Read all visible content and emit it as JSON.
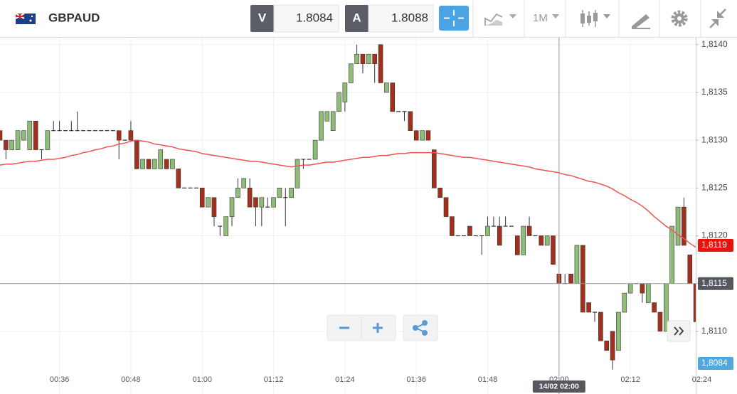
{
  "toolbar": {
    "symbol": "GBPAUD",
    "sell": {
      "label": "V",
      "price": "1.8084"
    },
    "buy": {
      "label": "A",
      "price": "1.8088"
    },
    "timeframe": "1M"
  },
  "chart_data": {
    "type": "candlestick",
    "categories": [
      null,
      null,
      null,
      null,
      null,
      null,
      null,
      null,
      null,
      null,
      "00:36",
      null,
      null,
      null,
      null,
      null,
      null,
      null,
      null,
      null,
      null,
      null,
      "00:48",
      null,
      null,
      null,
      null,
      null,
      null,
      null,
      null,
      null,
      null,
      null,
      "01:00",
      null,
      null,
      null,
      null,
      null,
      null,
      null,
      null,
      null,
      null,
      null,
      "01:12",
      null,
      null,
      null,
      null,
      null,
      null,
      null,
      null,
      null,
      null,
      null,
      "01:24",
      null,
      null,
      null,
      null,
      null,
      null,
      null,
      null,
      null,
      null,
      null,
      "01:36",
      null,
      null,
      null,
      null,
      null,
      null,
      null,
      null,
      null,
      null,
      null,
      "01:48",
      null,
      null,
      null,
      null,
      null,
      null,
      null,
      null,
      null,
      null,
      null,
      "02:00",
      null,
      null,
      null,
      null,
      null,
      null,
      null,
      null,
      null,
      null,
      null,
      "02:12",
      null,
      null,
      null,
      null,
      null,
      null,
      null,
      null,
      null,
      null,
      null,
      "02:24"
    ],
    "candles": [
      [
        1.8131,
        1.8131,
        1.813,
        1.813
      ],
      [
        1.813,
        1.813,
        1.8128,
        1.8129
      ],
      [
        1.8129,
        1.813,
        1.8129,
        1.813
      ],
      [
        1.8129,
        1.8131,
        1.8129,
        1.8131
      ],
      [
        1.813,
        1.8131,
        1.813,
        1.8131
      ],
      [
        1.8129,
        1.8132,
        1.8129,
        1.8132
      ],
      [
        1.8132,
        1.8132,
        1.8129,
        1.8129
      ],
      [
        1.8129,
        1.8129,
        1.8128,
        1.8129
      ],
      [
        1.8129,
        1.8131,
        1.8129,
        1.8131
      ],
      [
        1.8131,
        1.8132,
        1.8131,
        1.8131
      ],
      [
        1.8131,
        1.8132,
        1.8131,
        1.8131
      ],
      [
        1.8131,
        1.8131,
        1.8131,
        1.8131
      ],
      [
        1.8131,
        1.8132,
        1.8131,
        1.8131
      ],
      [
        1.8131,
        1.8133,
        1.8131,
        1.8131
      ],
      [
        1.8131,
        1.8131,
        1.8131,
        1.8131
      ],
      [
        1.8131,
        1.8131,
        1.8131,
        1.8131
      ],
      [
        1.8131,
        1.8131,
        1.8131,
        1.8131
      ],
      [
        1.8131,
        1.8131,
        1.8131,
        1.8131
      ],
      [
        1.8131,
        1.8131,
        1.8131,
        1.8131
      ],
      [
        1.8131,
        1.8131,
        1.8131,
        1.8131
      ],
      [
        1.8131,
        1.8131,
        1.8128,
        1.813
      ],
      [
        1.813,
        1.813,
        1.813,
        1.813
      ],
      [
        1.8131,
        1.8132,
        1.813,
        1.813
      ],
      [
        1.813,
        1.813,
        1.8127,
        1.8127
      ],
      [
        1.8127,
        1.8128,
        1.8127,
        1.8128
      ],
      [
        1.8128,
        1.8128,
        1.8127,
        1.8127
      ],
      [
        1.8127,
        1.8128,
        1.8127,
        1.8128
      ],
      [
        1.8127,
        1.8129,
        1.8127,
        1.8129
      ],
      [
        1.8128,
        1.8128,
        1.8127,
        1.8127
      ],
      [
        1.8127,
        1.8128,
        1.8127,
        1.8128
      ],
      [
        1.8127,
        1.8127,
        1.8125,
        1.8125
      ],
      [
        1.8125,
        1.8125,
        1.8125,
        1.8125
      ],
      [
        1.8125,
        1.8125,
        1.8125,
        1.8125
      ],
      [
        1.8125,
        1.8125,
        1.8125,
        1.8125
      ],
      [
        1.8125,
        1.8125,
        1.8123,
        1.8123
      ],
      [
        1.8123,
        1.8124,
        1.8123,
        1.8124
      ],
      [
        1.8124,
        1.8124,
        1.8121,
        1.8122
      ],
      [
        1.8121,
        1.8121,
        1.812,
        1.8121
      ],
      [
        1.812,
        1.8122,
        1.812,
        1.8122
      ],
      [
        1.8122,
        1.8124,
        1.8121,
        1.8124
      ],
      [
        1.8124,
        1.8126,
        1.8124,
        1.8125
      ],
      [
        1.8125,
        1.8126,
        1.8125,
        1.8126
      ],
      [
        1.8125,
        1.8126,
        1.8123,
        1.8123
      ],
      [
        1.8124,
        1.8124,
        1.8121,
        1.8123
      ],
      [
        1.8123,
        1.8124,
        1.8121,
        1.8124
      ],
      [
        1.8123,
        1.8124,
        1.8123,
        1.8123
      ],
      [
        1.8123,
        1.8124,
        1.8123,
        1.8124
      ],
      [
        1.8124,
        1.8125,
        1.8124,
        1.8125
      ],
      [
        1.8124,
        1.8125,
        1.8121,
        1.8124
      ],
      [
        1.8124,
        1.8125,
        1.8124,
        1.8125
      ],
      [
        1.8125,
        1.8128,
        1.8125,
        1.8128
      ],
      [
        1.8128,
        1.8128,
        1.8127,
        1.8128
      ],
      [
        1.8128,
        1.8128,
        1.8128,
        1.8128
      ],
      [
        1.8128,
        1.813,
        1.8128,
        1.813
      ],
      [
        1.813,
        1.8133,
        1.813,
        1.8133
      ],
      [
        1.8132,
        1.8133,
        1.8132,
        1.8133
      ],
      [
        1.8131,
        1.8133,
        1.8131,
        1.8133
      ],
      [
        1.8133,
        1.8135,
        1.8133,
        1.8135
      ],
      [
        1.8134,
        1.8136,
        1.8133,
        1.8136
      ],
      [
        1.8136,
        1.8138,
        1.8136,
        1.8138
      ],
      [
        1.8138,
        1.814,
        1.8138,
        1.8139
      ],
      [
        1.8139,
        1.8139,
        1.8137,
        1.8138
      ],
      [
        1.8138,
        1.8139,
        1.8138,
        1.8139
      ],
      [
        1.8139,
        1.8139,
        1.8136,
        1.8138
      ],
      [
        1.814,
        1.814,
        1.8136,
        1.8136
      ],
      [
        1.8135,
        1.8136,
        1.8135,
        1.8136
      ],
      [
        1.8136,
        1.8136,
        1.8133,
        1.8133
      ],
      [
        1.8133,
        1.8133,
        1.8133,
        1.8133
      ],
      [
        1.8133,
        1.8133,
        1.8132,
        1.8133
      ],
      [
        1.8133,
        1.8133,
        1.8131,
        1.8131
      ],
      [
        1.8131,
        1.8131,
        1.813,
        1.813
      ],
      [
        1.813,
        1.8131,
        1.813,
        1.8131
      ],
      [
        1.8131,
        1.8131,
        1.813,
        1.813
      ],
      [
        1.8129,
        1.8129,
        1.8125,
        1.8125
      ],
      [
        1.8125,
        1.8125,
        1.8124,
        1.8124
      ],
      [
        1.8124,
        1.8124,
        1.8122,
        1.8122
      ],
      [
        1.8122,
        1.8122,
        1.812,
        1.812
      ],
      [
        1.812,
        1.812,
        1.812,
        1.812
      ],
      [
        1.812,
        1.812,
        1.812,
        1.812
      ],
      [
        1.8121,
        1.8121,
        1.812,
        1.812
      ],
      [
        1.812,
        1.812,
        1.812,
        1.812
      ],
      [
        1.812,
        1.812,
        1.8118,
        1.812
      ],
      [
        1.812,
        1.8122,
        1.812,
        1.8121
      ],
      [
        1.8121,
        1.8122,
        1.8121,
        1.8121
      ],
      [
        1.8121,
        1.8122,
        1.8119,
        1.8119
      ],
      [
        1.8121,
        1.8122,
        1.8121,
        1.8121
      ],
      [
        1.8121,
        1.8121,
        1.8121,
        1.8121
      ],
      [
        1.812,
        1.812,
        1.8118,
        1.8118
      ],
      [
        1.8118,
        1.8121,
        1.8118,
        1.8121
      ],
      [
        1.8121,
        1.8122,
        1.812,
        1.812
      ],
      [
        1.812,
        1.812,
        1.812,
        1.812
      ],
      [
        1.812,
        1.812,
        1.8119,
        1.8119
      ],
      [
        1.8119,
        1.812,
        1.8119,
        1.812
      ],
      [
        1.812,
        1.812,
        1.8117,
        1.8117
      ],
      [
        1.8116,
        1.8116,
        1.8115,
        1.8115
      ],
      [
        1.8115,
        1.8116,
        1.8115,
        1.8115
      ],
      [
        1.8116,
        1.8116,
        1.8115,
        1.8115
      ],
      [
        1.8115,
        1.8119,
        1.8115,
        1.8119
      ],
      [
        1.8119,
        1.8119,
        1.8112,
        1.8112
      ],
      [
        1.8113,
        1.8113,
        1.8112,
        1.8112
      ],
      [
        1.8112,
        1.8112,
        1.8111,
        1.8112
      ],
      [
        1.8112,
        1.8112,
        1.8109,
        1.8109
      ],
      [
        1.8109,
        1.8109,
        1.8108,
        1.8108
      ],
      [
        1.811,
        1.811,
        1.8106,
        1.8107
      ],
      [
        1.8108,
        1.8112,
        1.8108,
        1.8112
      ],
      [
        1.8112,
        1.8114,
        1.8112,
        1.8114
      ],
      [
        1.8114,
        1.8115,
        1.8114,
        1.8115
      ],
      [
        1.8115,
        1.8115,
        1.8115,
        1.8115
      ],
      [
        1.8115,
        1.8115,
        1.8113,
        1.8114
      ],
      [
        1.8113,
        1.8115,
        1.8113,
        1.8115
      ],
      [
        1.8113,
        1.8113,
        1.8112,
        1.8112
      ],
      [
        1.8112,
        1.8112,
        1.811,
        1.811
      ],
      [
        1.811,
        1.8115,
        1.811,
        1.8115
      ],
      [
        1.8115,
        1.8121,
        1.8115,
        1.8121
      ],
      [
        1.8119,
        1.8123,
        1.8119,
        1.8123
      ],
      [
        1.8123,
        1.8124,
        1.8119,
        1.8119
      ],
      [
        1.8118,
        1.8118,
        1.8115,
        1.8115
      ],
      [
        1.8115,
        1.8115,
        1.8111,
        1.8111
      ],
      null
    ],
    "up_color": "#8fbd78",
    "down_color": "#a3301c",
    "flat_color": "#333333",
    "ma": {
      "color": "#ef5350",
      "values": [
        1.81274,
        1.81275,
        1.81275,
        1.81276,
        1.81277,
        1.81278,
        1.81278,
        1.81279,
        1.8128,
        1.8128,
        1.81281,
        1.81282,
        1.81284,
        1.81285,
        1.81287,
        1.81288,
        1.8129,
        1.81291,
        1.81293,
        1.81294,
        1.81296,
        1.81297,
        1.81299,
        1.813,
        1.81299,
        1.81298,
        1.81296,
        1.81295,
        1.81294,
        1.81293,
        1.81291,
        1.8129,
        1.81289,
        1.81288,
        1.81286,
        1.81285,
        1.81284,
        1.81283,
        1.81282,
        1.81281,
        1.8128,
        1.81279,
        1.81278,
        1.81278,
        1.81277,
        1.81276,
        1.81275,
        1.81274,
        1.81273,
        1.81272,
        1.81273,
        1.81274,
        1.81274,
        1.81275,
        1.81276,
        1.81277,
        1.81277,
        1.81278,
        1.81279,
        1.8128,
        1.81281,
        1.81282,
        1.81282,
        1.81283,
        1.81284,
        1.81284,
        1.81285,
        1.81286,
        1.81286,
        1.81287,
        1.81287,
        1.81287,
        1.81287,
        1.81287,
        1.81286,
        1.81285,
        1.81284,
        1.81283,
        1.81282,
        1.81282,
        1.81281,
        1.8128,
        1.81279,
        1.81278,
        1.81277,
        1.81276,
        1.81275,
        1.81274,
        1.81273,
        1.81272,
        1.8127,
        1.81269,
        1.81268,
        1.81267,
        1.81266,
        1.81264,
        1.81263,
        1.81261,
        1.81259,
        1.81257,
        1.81256,
        1.81254,
        1.81252,
        1.81249,
        1.81245,
        1.81242,
        1.81238,
        1.81235,
        1.81231,
        1.81226,
        1.8122,
        1.81215,
        1.8121,
        1.81206,
        1.81201,
        1.81197,
        1.81192,
        1.81188,
        null
      ]
    },
    "ma_tag": {
      "value": 1.8119,
      "label": "1,8119"
    },
    "ylim": [
      1.81056,
      1.81408
    ],
    "yticks": [
      {
        "value": 1.811,
        "label": "1,8110"
      },
      {
        "value": 1.8115,
        "label": "1,8115"
      },
      {
        "value": 1.812,
        "label": "1,8120"
      },
      {
        "value": 1.8125,
        "label": "1,8125"
      },
      {
        "value": 1.813,
        "label": "1,8130"
      },
      {
        "value": 1.8135,
        "label": "1,8135"
      },
      {
        "value": 1.814,
        "label": "1,8140"
      }
    ],
    "grid": true,
    "crosshair": {
      "time_label": "14/02 02:00",
      "price": {
        "value": 1.8115,
        "label": "1,8115"
      }
    },
    "bid_tag": "1,8084"
  }
}
